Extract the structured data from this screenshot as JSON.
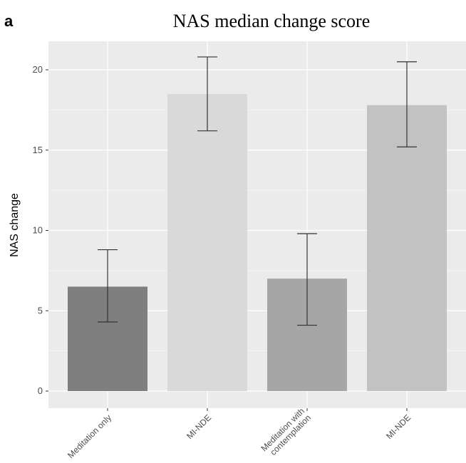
{
  "panel_label": "a",
  "chart_data": {
    "type": "bar",
    "title": "NAS median change score",
    "xlabel": "",
    "ylabel": "NAS change",
    "categories": [
      [
        "Meditation only"
      ],
      [
        "MI-NDE"
      ],
      [
        "Meditation with",
        "contemplation"
      ],
      [
        "MI-NDE"
      ]
    ],
    "values": [
      6.5,
      18.5,
      7.0,
      17.8
    ],
    "error_low": [
      4.3,
      16.2,
      4.1,
      15.2
    ],
    "error_high": [
      8.8,
      20.8,
      9.8,
      20.5
    ],
    "bar_colors": [
      "#7f7f7f",
      "#d9d9d9",
      "#a6a6a6",
      "#c2c2c2"
    ],
    "ylim": [
      0,
      21.5
    ],
    "yticks": [
      0,
      5,
      10,
      15,
      20
    ],
    "grid": true,
    "legend": "none",
    "colors": {
      "panel_background": "#ebebeb",
      "gridline": "#ffffff",
      "error_bar": "#333333"
    }
  }
}
